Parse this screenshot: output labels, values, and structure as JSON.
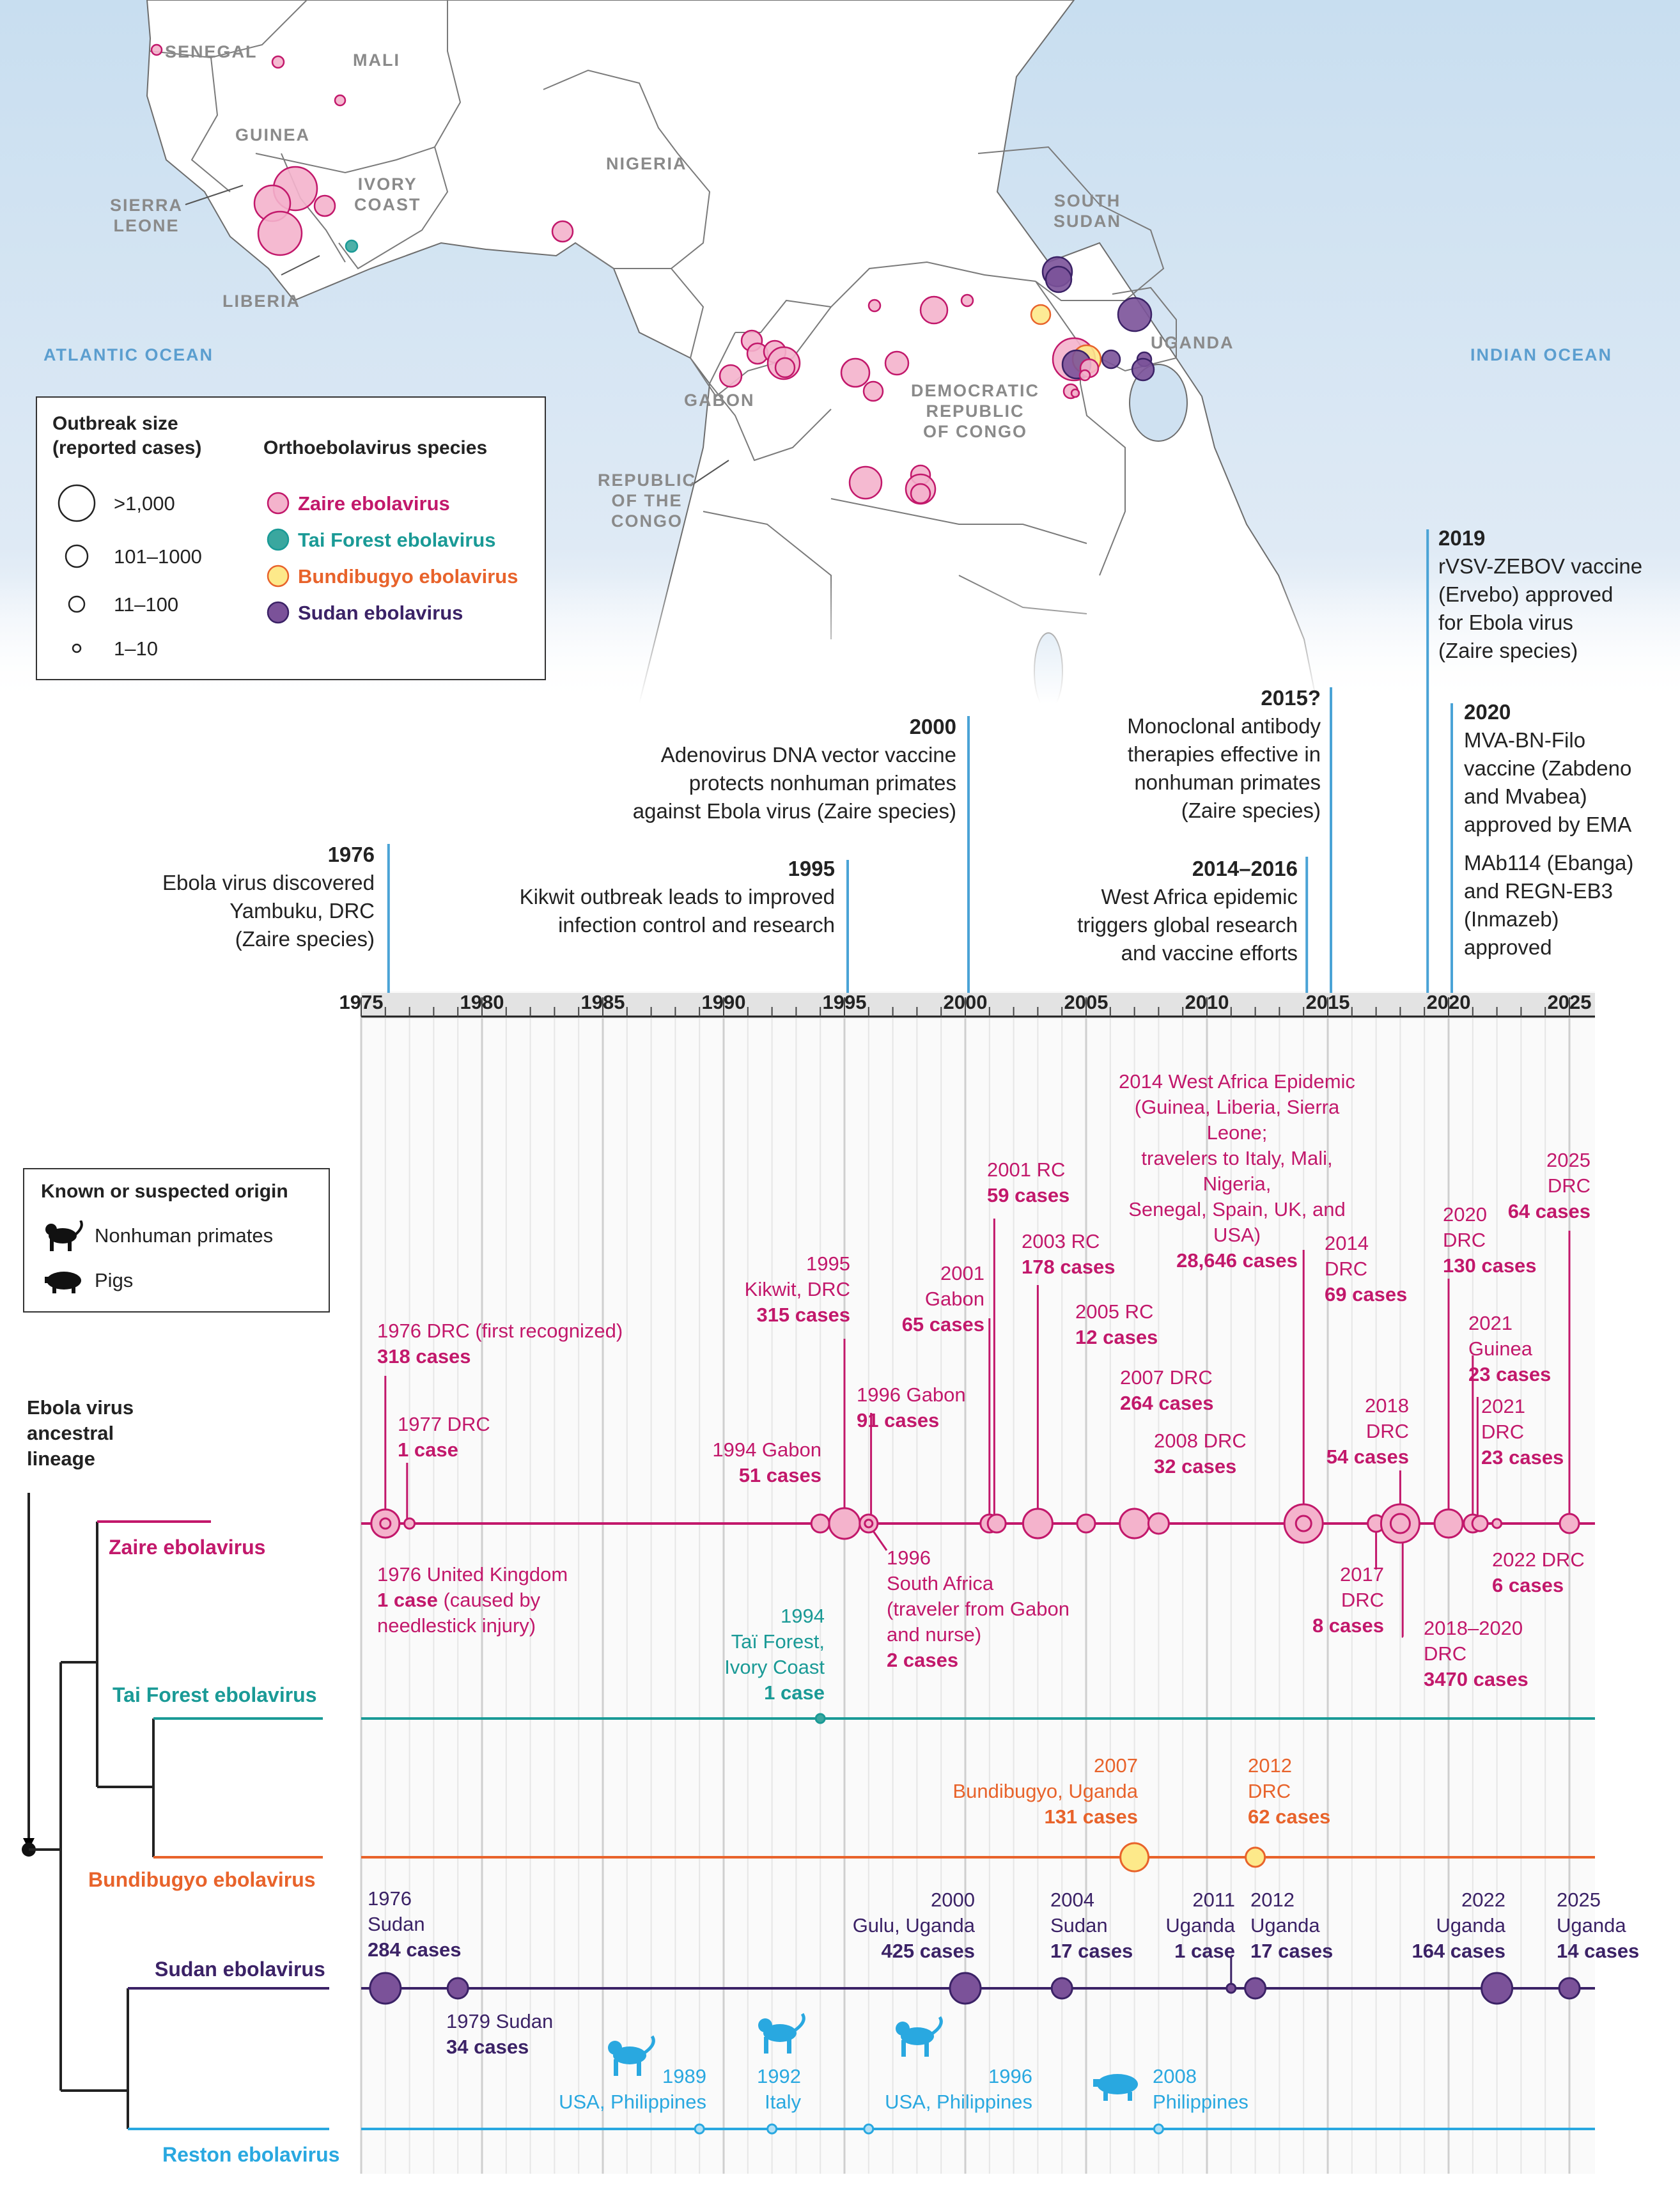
{
  "map": {
    "countries": [
      "SENEGAL",
      "MALI",
      "GUINEA",
      "SIERRA LEONE",
      "IVORY COAST",
      "LIBERIA",
      "NIGERIA",
      "SOUTH SUDAN",
      "UGANDA",
      "GABON",
      "DEMOCRATIC REPUBLIC OF CONGO",
      "REPUBLIC OF THE CONGO"
    ],
    "oceans": [
      "ATLANTIC OCEAN",
      "INDIAN OCEAN"
    ]
  },
  "labels": {
    "senegal": "SENEGAL",
    "mali": "MALI",
    "guinea": "GUINEA",
    "sierra_leone_1": "SIERRA",
    "sierra_leone_2": "LEONE",
    "ivory_1": "IVORY",
    "ivory_2": "COAST",
    "liberia": "LIBERIA",
    "nigeria": "NIGERIA",
    "ssudan_1": "SOUTH",
    "ssudan_2": "SUDAN",
    "uganda": "UGANDA",
    "gabon": "GABON",
    "drc_1": "DEMOCRATIC",
    "drc_2": "REPUBLIC",
    "drc_3": "OF CONGO",
    "roc_1": "REPUBLIC",
    "roc_2": "OF THE",
    "roc_3": "CONGO",
    "atlantic": "ATLANTIC OCEAN",
    "indian": "INDIAN OCEAN"
  },
  "legend": {
    "size_title_1": "Outbreak size",
    "size_title_2": "(reported cases)",
    "sizes": [
      ">1,000",
      "101–1000",
      "11–100",
      "1–10"
    ],
    "species_title": "Orthoebolavirus species",
    "species": [
      {
        "name": "Zaire ebolavirus",
        "color": "#c2186b",
        "fill": "#f4b3cc"
      },
      {
        "name": "Tai Forest ebolavirus",
        "color": "#1a9a96",
        "fill": "#3aa79f"
      },
      {
        "name": "Bundibugyo ebolavirus",
        "color": "#e8632b",
        "fill": "#fde98a"
      },
      {
        "name": "Sudan ebolavirus",
        "color": "#3b2266",
        "fill": "#7b5299"
      }
    ]
  },
  "origin_legend": {
    "title": "Known or suspected origin",
    "items": [
      "Nonhuman primates",
      "Pigs"
    ]
  },
  "milestones": [
    {
      "year": "1976",
      "text": [
        "Ebola virus discovered",
        "Yambuku, DRC",
        "(Zaire species)"
      ]
    },
    {
      "year": "1995",
      "text": [
        "Kikwit outbreak leads to improved",
        "infection control and research"
      ]
    },
    {
      "year": "2000",
      "text": [
        "Adenovirus DNA vector vaccine",
        "protects nonhuman primates",
        "against Ebola virus (Zaire species)"
      ]
    },
    {
      "year": "2014–2016",
      "text": [
        "West Africa epidemic",
        "triggers global research",
        "and vaccine efforts"
      ]
    },
    {
      "year": "2015?",
      "text": [
        "Monoclonal antibody",
        "therapies effective in",
        "nonhuman primates",
        "(Zaire species)"
      ]
    },
    {
      "year": "2019",
      "text": [
        "rVSV-ZEBOV vaccine",
        "(Ervebo) approved",
        "for Ebola virus",
        "(Zaire species)"
      ]
    },
    {
      "year": "2020",
      "text": [
        "MVA-BN-Filo",
        "vaccine (Zabdeno",
        "and Mvabea)",
        "approved by EMA",
        "MAb114 (Ebanga)",
        "and REGN-EB3",
        "(Inmazeb)",
        "approved"
      ]
    }
  ],
  "axis_years": [
    "1975",
    "1980",
    "1985",
    "1990",
    "1995",
    "2000",
    "2005",
    "2010",
    "2015",
    "2020",
    "2025"
  ],
  "lineage": {
    "root": [
      "Ebola virus",
      "ancestral",
      "lineage"
    ],
    "species": [
      "Zaire ebolavirus",
      "Tai Forest ebolavirus",
      "Bundibugyo ebolavirus",
      "Sudan ebolavirus",
      "Reston ebolavirus"
    ]
  },
  "events": {
    "zaire": [
      {
        "l1": "1976 DRC (first recognized)",
        "l2": "318 cases"
      },
      {
        "l1": "1977 DRC",
        "l2": "1 case"
      },
      {
        "l1": "1976 United Kingdom",
        "l2": "1 case",
        "l2b": " (caused by",
        "l3": "needlestick injury)"
      },
      {
        "l1": "1994 Gabon",
        "l2": "51 cases"
      },
      {
        "l1": "1995",
        "l1b": "Kikwit, DRC",
        "l2": "315 cases"
      },
      {
        "l1": "1996 Gabon",
        "l2": "91 cases"
      },
      {
        "l1": "1996",
        "l1b": "South Africa",
        "l1c": "(traveler from Gabon",
        "l1d": "and nurse)",
        "l2": "2 cases"
      },
      {
        "l1": "2001",
        "l1b": "Gabon",
        "l2": "65 cases"
      },
      {
        "l1": "2001 RC",
        "l2": "59 cases"
      },
      {
        "l1": "2003 RC",
        "l2": "178 cases"
      },
      {
        "l1": "2005 RC",
        "l2": "12 cases"
      },
      {
        "l1": "2007 DRC",
        "l2": "264 cases"
      },
      {
        "l1": "2008 DRC",
        "l2": "32 cases"
      },
      {
        "l1": "2014 West Africa Epidemic",
        "l1b": "(Guinea, Liberia, Sierra Leone;",
        "l1c": "travelers to Italy, Mali, Nigeria,",
        "l1d": "Senegal, Spain, UK, and USA)",
        "l2": "28,646 cases"
      },
      {
        "l1": "2014",
        "l1b": "DRC",
        "l2": "69 cases"
      },
      {
        "l1": "2017",
        "l1b": "DRC",
        "l2": "8 cases"
      },
      {
        "l1": "2018",
        "l1b": "DRC",
        "l2": "54 cases"
      },
      {
        "l1": "2018–2020",
        "l1b": "DRC",
        "l2": "3470 cases"
      },
      {
        "l1": "2020",
        "l1b": "DRC",
        "l2": "130 cases"
      },
      {
        "l1": "2021",
        "l1b": "Guinea",
        "l2": "23 cases"
      },
      {
        "l1": "2021",
        "l1b": "DRC",
        "l2": "23 cases"
      },
      {
        "l1": "2022 DRC",
        "l2": "6 cases"
      },
      {
        "l1": "2025",
        "l1b": "DRC",
        "l2": "64 cases"
      }
    ],
    "tai": [
      {
        "l1": "1994",
        "l1b": "Taï Forest,",
        "l1c": "Ivory Coast",
        "l2": "1 case"
      }
    ],
    "bundibugyo": [
      {
        "l1": "2007",
        "l1b": "Bundibugyo, Uganda",
        "l2": "131 cases"
      },
      {
        "l1": "2012",
        "l1b": "DRC",
        "l2": "62 cases"
      }
    ],
    "sudan": [
      {
        "l1": "1976",
        "l1b": "Sudan",
        "l2": "284 cases"
      },
      {
        "l1": "1979 Sudan",
        "l2": "34 cases"
      },
      {
        "l1": "2000",
        "l1b": "Gulu, Uganda",
        "l2": "425 cases"
      },
      {
        "l1": "2004",
        "l1b": "Sudan",
        "l2": "17 cases"
      },
      {
        "l1": "2011",
        "l1b": "Uganda",
        "l2": "1 case"
      },
      {
        "l1": "2012",
        "l1b": "Uganda",
        "l2": "17 cases"
      },
      {
        "l1": "2022",
        "l1b": "Uganda",
        "l2": "164 cases"
      },
      {
        "l1": "2025",
        "l1b": "Uganda",
        "l2": "14 cases"
      }
    ],
    "reston": [
      {
        "l1": "1989",
        "l1b": "USA, Philippines",
        "icon": "monkey-icon"
      },
      {
        "l1": "1992",
        "l1b": "Italy",
        "icon": "monkey-icon"
      },
      {
        "l1": "1996",
        "l1b": "USA, Philippines",
        "icon": "monkey-icon"
      },
      {
        "l1": "2008",
        "l1b": "Philippines",
        "icon": "pig-icon"
      }
    ]
  },
  "colors": {
    "zaire": "#c2186b",
    "zaire_fill": "#f4b3cc",
    "tai": "#1a9a96",
    "bundi": "#e8632b",
    "bundi_fill": "#fde98a",
    "sudan": "#3b2266",
    "sudan_fill": "#7b5299",
    "reston": "#29a8e0",
    "milestone": "#4aa3d6"
  }
}
